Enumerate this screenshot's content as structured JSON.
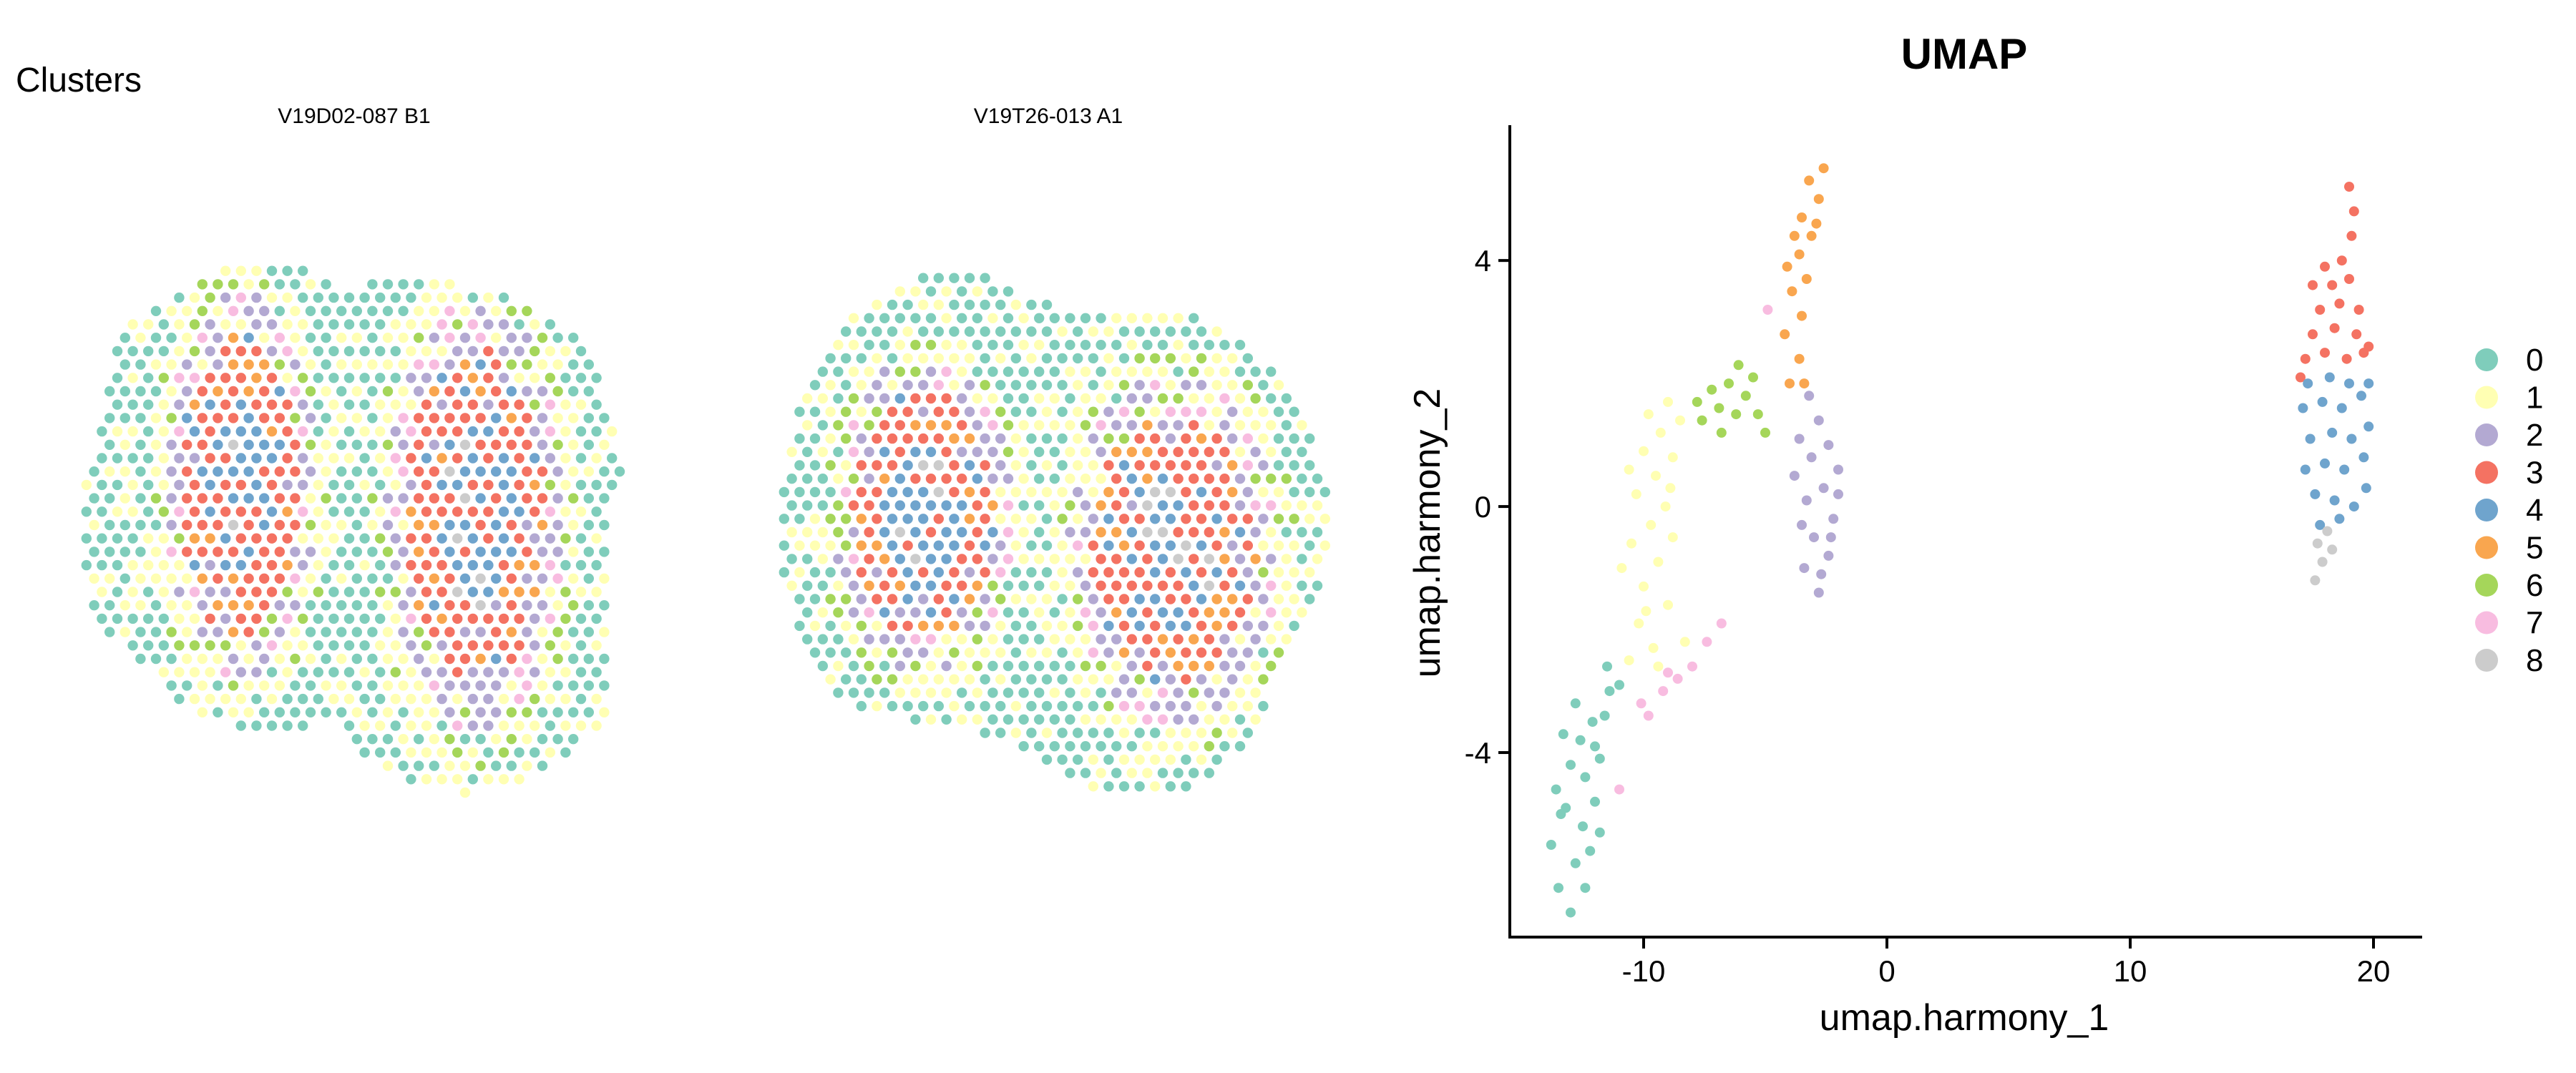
{
  "figure": {
    "spatial_title": "Clusters",
    "panels": [
      {
        "label": "V19D02-087  B1"
      },
      {
        "label": "V19T26-013  A1"
      }
    ]
  },
  "palette": {
    "0": "#7fcdbb",
    "1": "#ffffb3",
    "2": "#b3a9d2",
    "3": "#f47262",
    "4": "#6fa4cd",
    "5": "#f9a64f",
    "6": "#a5d65a",
    "7": "#f8bce0",
    "8": "#cccccc"
  },
  "chart_data": {
    "type": "scatter",
    "title": "UMAP",
    "xlabel": "umap.harmony_1",
    "ylabel": "umap.harmony_2",
    "xlim": [
      -15.5,
      22
    ],
    "ylim": [
      -7,
      6.2
    ],
    "xticks": [
      -10,
      0,
      10,
      20
    ],
    "xtick_labels": [
      "-10",
      "0",
      "10",
      "20"
    ],
    "yticks": [
      -4,
      0,
      4
    ],
    "ytick_labels": [
      "-4",
      "0",
      "4"
    ],
    "grid": false,
    "legend_position": "right",
    "clusters": [
      {
        "label": "0",
        "color": "#7fcdbb",
        "points": [
          [
            -13.0,
            -6.6
          ],
          [
            -13.5,
            -6.2
          ],
          [
            -12.8,
            -5.8
          ],
          [
            -13.8,
            -5.5
          ],
          [
            -12.5,
            -5.2
          ],
          [
            -13.2,
            -4.9
          ],
          [
            -12.0,
            -4.8
          ],
          [
            -13.6,
            -4.6
          ],
          [
            -12.4,
            -4.4
          ],
          [
            -13.0,
            -4.2
          ],
          [
            -11.8,
            -4.1
          ],
          [
            -12.6,
            -3.8
          ],
          [
            -13.3,
            -3.7
          ],
          [
            -12.1,
            -3.5
          ],
          [
            -11.6,
            -3.4
          ],
          [
            -12.8,
            -3.2
          ],
          [
            -11.4,
            -3.0
          ],
          [
            -12.2,
            -5.6
          ],
          [
            -11.8,
            -5.3
          ],
          [
            -13.4,
            -5.0
          ],
          [
            -12.0,
            -3.9
          ],
          [
            -11.0,
            -2.9
          ],
          [
            -11.5,
            -2.6
          ],
          [
            -12.4,
            -6.2
          ]
        ]
      },
      {
        "label": "1",
        "color": "#ffffb3",
        "points": [
          [
            -10.6,
            -2.5
          ],
          [
            -9.6,
            -2.3
          ],
          [
            -10.2,
            -1.9
          ],
          [
            -9.0,
            -1.6
          ],
          [
            -10.0,
            -1.3
          ],
          [
            -9.4,
            -0.9
          ],
          [
            -10.5,
            -0.6
          ],
          [
            -9.7,
            -0.3
          ],
          [
            -9.1,
            0.0
          ],
          [
            -10.3,
            0.2
          ],
          [
            -9.5,
            0.5
          ],
          [
            -8.8,
            0.8
          ],
          [
            -10.0,
            0.9
          ],
          [
            -9.3,
            1.2
          ],
          [
            -8.5,
            1.4
          ],
          [
            -9.8,
            1.5
          ],
          [
            -9.0,
            1.7
          ],
          [
            -8.3,
            -2.2
          ],
          [
            -10.9,
            -1.0
          ],
          [
            -8.8,
            -0.5
          ],
          [
            -9.9,
            -1.7
          ],
          [
            -10.6,
            0.6
          ],
          [
            -8.9,
            0.3
          ],
          [
            -9.4,
            -2.6
          ]
        ]
      },
      {
        "label": "2",
        "color": "#b3a9d2",
        "points": [
          [
            -2.8,
            -1.4
          ],
          [
            -3.4,
            -1.0
          ],
          [
            -2.4,
            -0.8
          ],
          [
            -3.0,
            -0.5
          ],
          [
            -2.2,
            -0.2
          ],
          [
            -3.3,
            0.1
          ],
          [
            -2.6,
            0.3
          ],
          [
            -2.0,
            0.6
          ],
          [
            -3.1,
            0.8
          ],
          [
            -2.4,
            1.0
          ],
          [
            -3.6,
            1.1
          ],
          [
            -2.8,
            1.4
          ],
          [
            -3.2,
            1.8
          ],
          [
            -2.3,
            -0.5
          ],
          [
            -3.5,
            -0.3
          ],
          [
            -2.0,
            0.2
          ],
          [
            -3.8,
            0.5
          ],
          [
            -2.7,
            -1.1
          ]
        ]
      },
      {
        "label": "3",
        "color": "#f47262",
        "points": [
          [
            17.2,
            2.4
          ],
          [
            18.0,
            2.5
          ],
          [
            18.9,
            2.4
          ],
          [
            19.6,
            2.5
          ],
          [
            17.5,
            2.8
          ],
          [
            18.4,
            2.9
          ],
          [
            19.3,
            2.8
          ],
          [
            17.8,
            3.2
          ],
          [
            18.6,
            3.3
          ],
          [
            19.4,
            3.2
          ],
          [
            17.5,
            3.6
          ],
          [
            18.3,
            3.6
          ],
          [
            19.0,
            3.7
          ],
          [
            18.0,
            3.9
          ],
          [
            18.7,
            4.0
          ],
          [
            19.1,
            4.4
          ],
          [
            19.2,
            4.8
          ],
          [
            19.0,
            5.2
          ],
          [
            17.0,
            2.1
          ],
          [
            19.8,
            2.6
          ]
        ]
      },
      {
        "label": "4",
        "color": "#6fa4cd",
        "points": [
          [
            17.6,
            0.2
          ],
          [
            18.4,
            0.1
          ],
          [
            19.2,
            0.0
          ],
          [
            19.7,
            0.3
          ],
          [
            17.2,
            0.6
          ],
          [
            18.0,
            0.7
          ],
          [
            18.8,
            0.6
          ],
          [
            19.6,
            0.8
          ],
          [
            17.4,
            1.1
          ],
          [
            18.3,
            1.2
          ],
          [
            19.1,
            1.1
          ],
          [
            19.8,
            1.3
          ],
          [
            17.1,
            1.6
          ],
          [
            17.9,
            1.7
          ],
          [
            18.7,
            1.6
          ],
          [
            19.5,
            1.8
          ],
          [
            17.3,
            2.0
          ],
          [
            18.2,
            2.1
          ],
          [
            19.0,
            2.0
          ],
          [
            19.8,
            2.0
          ],
          [
            18.6,
            -0.2
          ],
          [
            17.8,
            -0.3
          ]
        ]
      },
      {
        "label": "5",
        "color": "#f9a64f",
        "points": [
          [
            -4.0,
            2.0
          ],
          [
            -3.6,
            2.4
          ],
          [
            -4.2,
            2.8
          ],
          [
            -3.5,
            3.1
          ],
          [
            -3.9,
            3.5
          ],
          [
            -3.3,
            3.7
          ],
          [
            -3.6,
            4.1
          ],
          [
            -3.1,
            4.4
          ],
          [
            -3.5,
            4.7
          ],
          [
            -2.8,
            5.0
          ],
          [
            -3.2,
            5.3
          ],
          [
            -2.6,
            5.5
          ],
          [
            -4.1,
            3.9
          ],
          [
            -3.4,
            2.0
          ],
          [
            -2.9,
            4.6
          ],
          [
            -3.8,
            4.4
          ]
        ]
      },
      {
        "label": "6",
        "color": "#a5d65a",
        "points": [
          [
            -7.6,
            1.4
          ],
          [
            -6.9,
            1.6
          ],
          [
            -6.2,
            1.5
          ],
          [
            -7.2,
            1.9
          ],
          [
            -6.5,
            2.0
          ],
          [
            -5.8,
            1.8
          ],
          [
            -5.3,
            1.5
          ],
          [
            -6.8,
            1.2
          ],
          [
            -6.1,
            2.3
          ],
          [
            -5.5,
            2.1
          ],
          [
            -7.8,
            1.7
          ],
          [
            -5.0,
            1.2
          ]
        ]
      },
      {
        "label": "7",
        "color": "#f8bce0",
        "points": [
          [
            -9.8,
            -3.4
          ],
          [
            -9.2,
            -3.0
          ],
          [
            -8.6,
            -2.8
          ],
          [
            -8.0,
            -2.6
          ],
          [
            -7.4,
            -2.2
          ],
          [
            -6.8,
            -1.9
          ],
          [
            -10.1,
            -3.2
          ],
          [
            -9.0,
            -2.7
          ],
          [
            -4.9,
            3.2
          ],
          [
            -11.0,
            -4.6
          ]
        ]
      },
      {
        "label": "8",
        "color": "#cccccc",
        "points": [
          [
            17.6,
            -1.2
          ],
          [
            17.9,
            -0.9
          ],
          [
            17.7,
            -0.6
          ],
          [
            18.1,
            -0.4
          ],
          [
            18.3,
            -0.7
          ]
        ]
      }
    ]
  },
  "legend": {
    "items": [
      "0",
      "1",
      "2",
      "3",
      "4",
      "5",
      "6",
      "7",
      "8"
    ]
  }
}
